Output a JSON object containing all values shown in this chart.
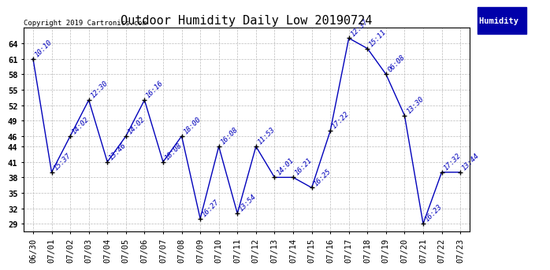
{
  "title": "Outdoor Humidity Daily Low 20190724",
  "copyright": "Copyright 2019 Cartronics.com",
  "legend_label": "Humidity  (%)",
  "x_labels": [
    "06/30",
    "07/01",
    "07/02",
    "07/03",
    "07/04",
    "07/05",
    "07/06",
    "07/07",
    "07/08",
    "07/09",
    "07/10",
    "07/11",
    "07/12",
    "07/13",
    "07/14",
    "07/15",
    "07/16",
    "07/17",
    "07/18",
    "07/19",
    "07/20",
    "07/21",
    "07/22",
    "07/23"
  ],
  "y_values": [
    61,
    39,
    46,
    53,
    41,
    46,
    53,
    41,
    46,
    30,
    44,
    31,
    44,
    38,
    38,
    36,
    47,
    65,
    63,
    58,
    50,
    29,
    39,
    39
  ],
  "point_labels": [
    "10:10",
    "15:37",
    "14:02",
    "12:30",
    "13:46",
    "14:02",
    "16:16",
    "18:08",
    "18:00",
    "16:27",
    "16:08",
    "13:54",
    "11:53",
    "14:01",
    "16:21",
    "16:25",
    "17:22",
    "12:37",
    "15:11",
    "06:08",
    "13:30",
    "16:23",
    "17:32",
    "13:44"
  ],
  "line_color": "#0000bb",
  "marker_color": "#000000",
  "background_color": "#ffffff",
  "plot_background": "#ffffff",
  "grid_color": "#bbbbbb",
  "legend_bg": "#0000aa",
  "legend_fg": "#ffffff",
  "ylim": [
    27.5,
    67
  ],
  "yticks": [
    29,
    32,
    35,
    38,
    41,
    44,
    46,
    49,
    52,
    55,
    58,
    61,
    64
  ],
  "title_fontsize": 11,
  "label_fontsize": 6.5,
  "tick_fontsize": 7.5,
  "copyright_fontsize": 6.5
}
